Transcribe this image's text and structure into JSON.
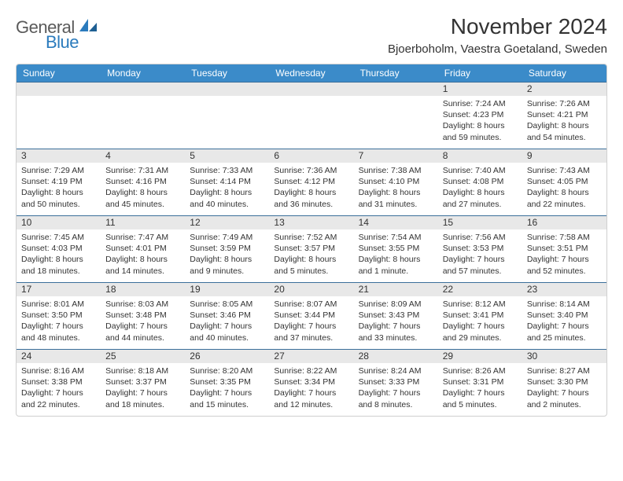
{
  "brand": {
    "part1": "General",
    "part2": "Blue",
    "color_primary": "#2b7bbd",
    "color_text": "#5a5a5a"
  },
  "header": {
    "title": "November 2024",
    "location": "Bjoerboholm, Vaestra Goetaland, Sweden"
  },
  "colors": {
    "dow_bg": "#3b8bc9",
    "dow_fg": "#ffffff",
    "daynum_bg": "#e8e8e8",
    "row_divider": "#3b6f9a",
    "outer_border": "#cfcfcf",
    "body_text": "#333333"
  },
  "dow": [
    "Sunday",
    "Monday",
    "Tuesday",
    "Wednesday",
    "Thursday",
    "Friday",
    "Saturday"
  ],
  "weeks": [
    [
      {
        "n": "",
        "sr": "",
        "ss": "",
        "dl": ""
      },
      {
        "n": "",
        "sr": "",
        "ss": "",
        "dl": ""
      },
      {
        "n": "",
        "sr": "",
        "ss": "",
        "dl": ""
      },
      {
        "n": "",
        "sr": "",
        "ss": "",
        "dl": ""
      },
      {
        "n": "",
        "sr": "",
        "ss": "",
        "dl": ""
      },
      {
        "n": "1",
        "sr": "Sunrise: 7:24 AM",
        "ss": "Sunset: 4:23 PM",
        "dl": "Daylight: 8 hours and 59 minutes."
      },
      {
        "n": "2",
        "sr": "Sunrise: 7:26 AM",
        "ss": "Sunset: 4:21 PM",
        "dl": "Daylight: 8 hours and 54 minutes."
      }
    ],
    [
      {
        "n": "3",
        "sr": "Sunrise: 7:29 AM",
        "ss": "Sunset: 4:19 PM",
        "dl": "Daylight: 8 hours and 50 minutes."
      },
      {
        "n": "4",
        "sr": "Sunrise: 7:31 AM",
        "ss": "Sunset: 4:16 PM",
        "dl": "Daylight: 8 hours and 45 minutes."
      },
      {
        "n": "5",
        "sr": "Sunrise: 7:33 AM",
        "ss": "Sunset: 4:14 PM",
        "dl": "Daylight: 8 hours and 40 minutes."
      },
      {
        "n": "6",
        "sr": "Sunrise: 7:36 AM",
        "ss": "Sunset: 4:12 PM",
        "dl": "Daylight: 8 hours and 36 minutes."
      },
      {
        "n": "7",
        "sr": "Sunrise: 7:38 AM",
        "ss": "Sunset: 4:10 PM",
        "dl": "Daylight: 8 hours and 31 minutes."
      },
      {
        "n": "8",
        "sr": "Sunrise: 7:40 AM",
        "ss": "Sunset: 4:08 PM",
        "dl": "Daylight: 8 hours and 27 minutes."
      },
      {
        "n": "9",
        "sr": "Sunrise: 7:43 AM",
        "ss": "Sunset: 4:05 PM",
        "dl": "Daylight: 8 hours and 22 minutes."
      }
    ],
    [
      {
        "n": "10",
        "sr": "Sunrise: 7:45 AM",
        "ss": "Sunset: 4:03 PM",
        "dl": "Daylight: 8 hours and 18 minutes."
      },
      {
        "n": "11",
        "sr": "Sunrise: 7:47 AM",
        "ss": "Sunset: 4:01 PM",
        "dl": "Daylight: 8 hours and 14 minutes."
      },
      {
        "n": "12",
        "sr": "Sunrise: 7:49 AM",
        "ss": "Sunset: 3:59 PM",
        "dl": "Daylight: 8 hours and 9 minutes."
      },
      {
        "n": "13",
        "sr": "Sunrise: 7:52 AM",
        "ss": "Sunset: 3:57 PM",
        "dl": "Daylight: 8 hours and 5 minutes."
      },
      {
        "n": "14",
        "sr": "Sunrise: 7:54 AM",
        "ss": "Sunset: 3:55 PM",
        "dl": "Daylight: 8 hours and 1 minute."
      },
      {
        "n": "15",
        "sr": "Sunrise: 7:56 AM",
        "ss": "Sunset: 3:53 PM",
        "dl": "Daylight: 7 hours and 57 minutes."
      },
      {
        "n": "16",
        "sr": "Sunrise: 7:58 AM",
        "ss": "Sunset: 3:51 PM",
        "dl": "Daylight: 7 hours and 52 minutes."
      }
    ],
    [
      {
        "n": "17",
        "sr": "Sunrise: 8:01 AM",
        "ss": "Sunset: 3:50 PM",
        "dl": "Daylight: 7 hours and 48 minutes."
      },
      {
        "n": "18",
        "sr": "Sunrise: 8:03 AM",
        "ss": "Sunset: 3:48 PM",
        "dl": "Daylight: 7 hours and 44 minutes."
      },
      {
        "n": "19",
        "sr": "Sunrise: 8:05 AM",
        "ss": "Sunset: 3:46 PM",
        "dl": "Daylight: 7 hours and 40 minutes."
      },
      {
        "n": "20",
        "sr": "Sunrise: 8:07 AM",
        "ss": "Sunset: 3:44 PM",
        "dl": "Daylight: 7 hours and 37 minutes."
      },
      {
        "n": "21",
        "sr": "Sunrise: 8:09 AM",
        "ss": "Sunset: 3:43 PM",
        "dl": "Daylight: 7 hours and 33 minutes."
      },
      {
        "n": "22",
        "sr": "Sunrise: 8:12 AM",
        "ss": "Sunset: 3:41 PM",
        "dl": "Daylight: 7 hours and 29 minutes."
      },
      {
        "n": "23",
        "sr": "Sunrise: 8:14 AM",
        "ss": "Sunset: 3:40 PM",
        "dl": "Daylight: 7 hours and 25 minutes."
      }
    ],
    [
      {
        "n": "24",
        "sr": "Sunrise: 8:16 AM",
        "ss": "Sunset: 3:38 PM",
        "dl": "Daylight: 7 hours and 22 minutes."
      },
      {
        "n": "25",
        "sr": "Sunrise: 8:18 AM",
        "ss": "Sunset: 3:37 PM",
        "dl": "Daylight: 7 hours and 18 minutes."
      },
      {
        "n": "26",
        "sr": "Sunrise: 8:20 AM",
        "ss": "Sunset: 3:35 PM",
        "dl": "Daylight: 7 hours and 15 minutes."
      },
      {
        "n": "27",
        "sr": "Sunrise: 8:22 AM",
        "ss": "Sunset: 3:34 PM",
        "dl": "Daylight: 7 hours and 12 minutes."
      },
      {
        "n": "28",
        "sr": "Sunrise: 8:24 AM",
        "ss": "Sunset: 3:33 PM",
        "dl": "Daylight: 7 hours and 8 minutes."
      },
      {
        "n": "29",
        "sr": "Sunrise: 8:26 AM",
        "ss": "Sunset: 3:31 PM",
        "dl": "Daylight: 7 hours and 5 minutes."
      },
      {
        "n": "30",
        "sr": "Sunrise: 8:27 AM",
        "ss": "Sunset: 3:30 PM",
        "dl": "Daylight: 7 hours and 2 minutes."
      }
    ]
  ]
}
